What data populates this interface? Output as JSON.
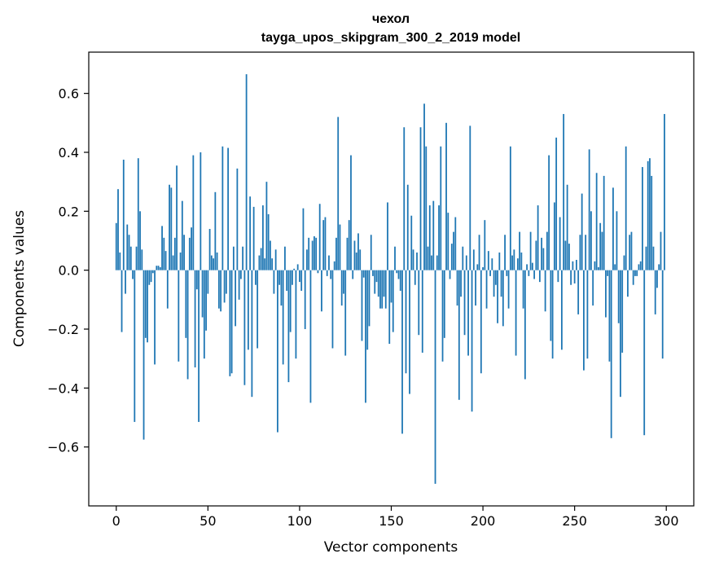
{
  "chart_data": {
    "type": "bar",
    "title": "чехол",
    "subtitle": "tayga_upos_skipgram_300_2_2019 model",
    "xlabel": "Vector components",
    "ylabel": "Components values",
    "xlim": [
      -15,
      315
    ],
    "ylim": [
      -0.8,
      0.74
    ],
    "xticks": [
      0,
      50,
      100,
      150,
      200,
      250,
      300
    ],
    "xtick_labels": [
      "0",
      "50",
      "100",
      "150",
      "200",
      "250",
      "300"
    ],
    "yticks": [
      -0.6,
      -0.4,
      -0.2,
      0.0,
      0.2,
      0.4,
      0.6
    ],
    "ytick_labels": [
      "−0.6",
      "−0.4",
      "−0.2",
      "0.0",
      "0.2",
      "0.4",
      "0.6"
    ],
    "bar_color": "#1f77b4",
    "grid": false,
    "legend": "none",
    "x": [
      0,
      1,
      2,
      3,
      4,
      5,
      6,
      7,
      8,
      9,
      10,
      11,
      12,
      13,
      14,
      15,
      16,
      17,
      18,
      19,
      20,
      21,
      22,
      23,
      24,
      25,
      26,
      27,
      28,
      29,
      30,
      31,
      32,
      33,
      34,
      35,
      36,
      37,
      38,
      39,
      40,
      41,
      42,
      43,
      44,
      45,
      46,
      47,
      48,
      49,
      50,
      51,
      52,
      53,
      54,
      55,
      56,
      57,
      58,
      59,
      60,
      61,
      62,
      63,
      64,
      65,
      66,
      67,
      68,
      69,
      70,
      71,
      72,
      73,
      74,
      75,
      76,
      77,
      78,
      79,
      80,
      81,
      82,
      83,
      84,
      85,
      86,
      87,
      88,
      89,
      90,
      91,
      92,
      93,
      94,
      95,
      96,
      97,
      98,
      99,
      100,
      101,
      102,
      103,
      104,
      105,
      106,
      107,
      108,
      109,
      110,
      111,
      112,
      113,
      114,
      115,
      116,
      117,
      118,
      119,
      120,
      121,
      122,
      123,
      124,
      125,
      126,
      127,
      128,
      129,
      130,
      131,
      132,
      133,
      134,
      135,
      136,
      137,
      138,
      139,
      140,
      141,
      142,
      143,
      144,
      145,
      146,
      147,
      148,
      149,
      150,
      151,
      152,
      153,
      154,
      155,
      156,
      157,
      158,
      159,
      160,
      161,
      162,
      163,
      164,
      165,
      166,
      167,
      168,
      169,
      170,
      171,
      172,
      173,
      174,
      175,
      176,
      177,
      178,
      179,
      180,
      181,
      182,
      183,
      184,
      185,
      186,
      187,
      188,
      189,
      190,
      191,
      192,
      193,
      194,
      195,
      196,
      197,
      198,
      199,
      200,
      201,
      202,
      203,
      204,
      205,
      206,
      207,
      208,
      209,
      210,
      211,
      212,
      213,
      214,
      215,
      216,
      217,
      218,
      219,
      220,
      221,
      222,
      223,
      224,
      225,
      226,
      227,
      228,
      229,
      230,
      231,
      232,
      233,
      234,
      235,
      236,
      237,
      238,
      239,
      240,
      241,
      242,
      243,
      244,
      245,
      246,
      247,
      248,
      249,
      250,
      251,
      252,
      253,
      254,
      255,
      256,
      257,
      258,
      259,
      260,
      261,
      262,
      263,
      264,
      265,
      266,
      267,
      268,
      269,
      270,
      271,
      272,
      273,
      274,
      275,
      276,
      277,
      278,
      279,
      280,
      281,
      282,
      283,
      284,
      285,
      286,
      287,
      288,
      289,
      290,
      291,
      292,
      293,
      294,
      295,
      296,
      297,
      298,
      299
    ],
    "values": [
      0.16,
      0.275,
      0.06,
      -0.21,
      0.375,
      -0.08,
      0.155,
      0.12,
      0.08,
      -0.03,
      -0.515,
      0.08,
      0.38,
      0.2,
      0.07,
      -0.575,
      -0.23,
      -0.245,
      -0.05,
      -0.04,
      -0.01,
      -0.32,
      0.015,
      0.015,
      0.01,
      0.15,
      0.11,
      0.065,
      -0.13,
      0.29,
      0.28,
      0.05,
      0.11,
      0.355,
      -0.31,
      0.06,
      0.235,
      0.12,
      -0.23,
      -0.37,
      0.11,
      0.145,
      0.39,
      -0.33,
      -0.065,
      -0.515,
      0.4,
      -0.16,
      -0.3,
      -0.205,
      -0.08,
      0.14,
      0.05,
      0.04,
      0.265,
      0.06,
      -0.13,
      -0.14,
      0.42,
      -0.11,
      -0.08,
      0.415,
      -0.36,
      -0.35,
      0.08,
      -0.19,
      0.345,
      -0.1,
      -0.03,
      0.08,
      -0.39,
      0.665,
      -0.27,
      0.25,
      -0.43,
      0.215,
      -0.05,
      -0.265,
      0.05,
      0.075,
      0.22,
      0.04,
      0.3,
      0.19,
      0.1,
      0.04,
      -0.08,
      0.07,
      -0.55,
      -0.05,
      -0.12,
      -0.32,
      0.08,
      -0.07,
      -0.38,
      -0.21,
      -0.05,
      0.005,
      -0.3,
      0.02,
      -0.04,
      -0.07,
      0.21,
      -0.2,
      0.07,
      0.11,
      -0.45,
      0.1,
      0.115,
      0.11,
      -0.01,
      0.225,
      -0.14,
      0.17,
      0.18,
      -0.02,
      0.05,
      -0.03,
      -0.265,
      0.03,
      0.11,
      0.52,
      0.155,
      -0.12,
      -0.08,
      -0.29,
      0.11,
      0.17,
      0.39,
      -0.03,
      0.1,
      0.06,
      0.125,
      0.07,
      -0.24,
      -0.025,
      -0.45,
      -0.27,
      -0.19,
      0.12,
      -0.02,
      -0.08,
      -0.04,
      -0.09,
      -0.13,
      -0.13,
      -0.09,
      -0.13,
      0.23,
      -0.25,
      -0.11,
      -0.21,
      0.08,
      -0.01,
      -0.03,
      -0.07,
      -0.555,
      0.485,
      -0.35,
      0.29,
      -0.42,
      0.185,
      0.07,
      -0.05,
      0.06,
      -0.22,
      0.485,
      -0.28,
      0.565,
      0.42,
      0.08,
      0.22,
      0.05,
      0.235,
      -0.725,
      0.05,
      0.22,
      0.42,
      -0.31,
      -0.23,
      0.5,
      0.195,
      -0.03,
      0.09,
      0.13,
      0.18,
      -0.12,
      -0.44,
      -0.09,
      0.08,
      -0.22,
      0.05,
      -0.29,
      0.49,
      -0.48,
      0.07,
      -0.12,
      0.02,
      0.12,
      -0.35,
      0.01,
      0.17,
      -0.13,
      0.065,
      -0.02,
      0.04,
      -0.09,
      -0.05,
      -0.18,
      0.06,
      -0.09,
      -0.19,
      0.12,
      -0.02,
      -0.13,
      0.42,
      0.05,
      0.07,
      -0.29,
      0.04,
      0.13,
      0.06,
      -0.13,
      -0.37,
      0.02,
      -0.02,
      0.13,
      0.025,
      -0.03,
      0.1,
      0.22,
      -0.04,
      0.11,
      0.075,
      -0.14,
      0.13,
      0.39,
      -0.24,
      -0.3,
      0.23,
      0.45,
      -0.04,
      0.18,
      -0.27,
      0.53,
      0.1,
      0.29,
      0.09,
      -0.05,
      0.03,
      -0.045,
      0.035,
      -0.15,
      0.12,
      0.26,
      -0.34,
      0.12,
      -0.3,
      0.41,
      0.2,
      -0.12,
      0.03,
      0.33,
      0.01,
      0.16,
      0.13,
      0.32,
      -0.16,
      -0.02,
      -0.31,
      -0.57,
      0.28,
      0.02,
      0.2,
      -0.18,
      -0.43,
      -0.28,
      0.05,
      0.42,
      -0.09,
      0.12,
      0.13,
      -0.05,
      -0.02,
      -0.02,
      0.02,
      0.03,
      0.35,
      -0.56,
      0.08,
      0.37,
      0.38,
      0.32,
      0.08,
      -0.15,
      -0.06,
      0.02,
      0.13,
      -0.3,
      0.53
    ]
  }
}
